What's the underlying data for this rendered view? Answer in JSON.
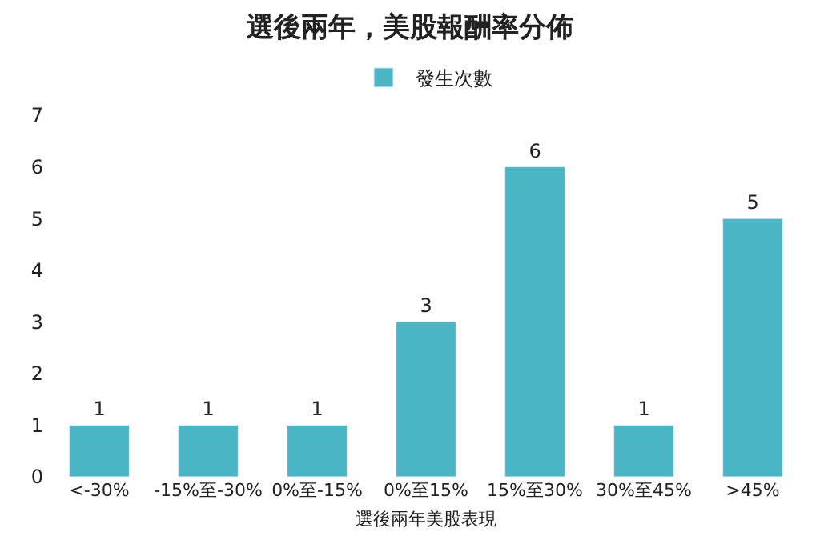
{
  "chart_data": {
    "type": "bar",
    "title": "選後兩年，美股報酬率分佈",
    "xlabel": "選後兩年美股表現",
    "categories": [
      "<-30%",
      "-15%至-30%",
      "0%至-15%",
      "0%至15%",
      "15%至30%",
      "30%至45%",
      ">45%"
    ],
    "series": [
      {
        "name": "發生次數",
        "color": "#4bb6c6",
        "values": [
          1,
          1,
          1,
          3,
          6,
          1,
          5
        ]
      }
    ],
    "ylim": [
      0,
      7
    ],
    "yticks": [
      0,
      1,
      2,
      3,
      4,
      5,
      6,
      7
    ],
    "legend": "top",
    "data_labels": true
  }
}
